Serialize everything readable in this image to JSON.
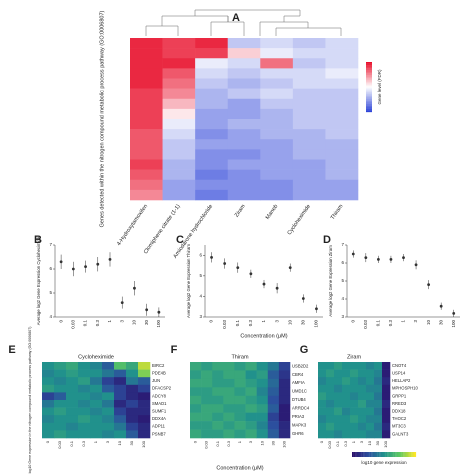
{
  "chart_data": [
    {
      "type": "heatmap",
      "panel": "A",
      "colormap": "blue-white-red",
      "clim": [
        -1,
        1
      ],
      "ylabel": "Genes detected within the nitrogen compound metabolic process pathway (GO:0006807)",
      "colorbar_label": "Gene level (FDR)",
      "categories": [
        "4-Hydroxytamoxifen",
        "Clomiphene citrate (1-1)",
        "Amiodarone hydrochloride",
        "Ziram",
        "Maneb",
        "Cycloheximide",
        "Thiram"
      ],
      "values": [
        [
          0.9,
          0.8,
          0.9,
          -0.3,
          -0.2,
          -0.3,
          -0.2
        ],
        [
          0.9,
          0.8,
          0.8,
          0.2,
          -0.1,
          -0.2,
          -0.2
        ],
        [
          0.9,
          0.9,
          -0.1,
          -0.2,
          0.6,
          -0.3,
          -0.2
        ],
        [
          0.9,
          0.7,
          -0.2,
          -0.3,
          -0.2,
          -0.2,
          -0.1
        ],
        [
          0.9,
          0.6,
          -0.3,
          -0.4,
          -0.3,
          -0.2,
          -0.2
        ],
        [
          0.8,
          0.5,
          -0.4,
          -0.3,
          -0.2,
          -0.3,
          -0.3
        ],
        [
          0.8,
          0.3,
          -0.4,
          -0.5,
          -0.3,
          -0.3,
          -0.3
        ],
        [
          0.8,
          0.1,
          -0.5,
          -0.5,
          -0.4,
          -0.3,
          -0.3
        ],
        [
          0.8,
          -0.1,
          -0.5,
          -0.4,
          -0.4,
          -0.3,
          -0.3
        ],
        [
          0.7,
          -0.2,
          -0.6,
          -0.5,
          -0.4,
          -0.4,
          -0.3
        ],
        [
          0.7,
          -0.3,
          -0.5,
          -0.5,
          -0.5,
          -0.4,
          -0.4
        ],
        [
          0.7,
          -0.3,
          -0.6,
          -0.6,
          -0.5,
          -0.4,
          -0.4
        ],
        [
          0.8,
          -0.4,
          -0.6,
          -0.5,
          -0.5,
          -0.5,
          -0.4
        ],
        [
          0.7,
          -0.4,
          -0.7,
          -0.6,
          -0.5,
          -0.5,
          -0.4
        ],
        [
          0.6,
          -0.5,
          -0.6,
          -0.6,
          -0.6,
          -0.5,
          -0.5
        ],
        [
          0.5,
          -0.5,
          -0.7,
          -0.6,
          -0.6,
          -0.5,
          -0.5
        ]
      ]
    },
    {
      "type": "scatter",
      "panel": "B",
      "ylabel": "Average log2 Gene Expression Cycloheximide",
      "categories": [
        "0",
        "0.03",
        "0.1",
        "0.3",
        "1",
        "3",
        "10",
        "30",
        "100"
      ],
      "values": [
        6.3,
        6.0,
        6.1,
        6.2,
        6.4,
        4.6,
        5.2,
        4.3,
        4.2
      ],
      "errors": [
        0.3,
        0.3,
        0.25,
        0.3,
        0.3,
        0.25,
        0.3,
        0.25,
        0.2
      ],
      "ylim": [
        4,
        7
      ],
      "yticks": [
        4,
        5,
        6,
        7
      ],
      "color": "#333333"
    },
    {
      "type": "scatter",
      "panel": "C",
      "ylabel": "Average log2 Gene Expression Thiram",
      "xlabel": "Concentration (μM)",
      "categories": [
        "0",
        "0.03",
        "0.1",
        "0.3",
        "1",
        "3",
        "10",
        "30",
        "100"
      ],
      "values": [
        5.9,
        5.6,
        5.4,
        5.1,
        4.6,
        4.4,
        5.4,
        3.9,
        3.4
      ],
      "errors": [
        0.25,
        0.25,
        0.25,
        0.2,
        0.2,
        0.25,
        0.2,
        0.2,
        0.2
      ],
      "ylim": [
        3,
        6.5
      ],
      "yticks": [
        3,
        4,
        5,
        6
      ],
      "color": "#333333"
    },
    {
      "type": "scatter",
      "panel": "D",
      "ylabel": "Average log2 Gene Expression Ziram",
      "categories": [
        "0",
        "0.03",
        "0.1",
        "0.3",
        "1",
        "3",
        "10",
        "30",
        "100"
      ],
      "values": [
        6.5,
        6.3,
        6.2,
        6.2,
        6.3,
        5.9,
        4.8,
        3.6,
        3.2
      ],
      "errors": [
        0.2,
        0.25,
        0.2,
        0.2,
        0.2,
        0.25,
        0.25,
        0.2,
        0.2
      ],
      "ylim": [
        3,
        7
      ],
      "yticks": [
        3,
        4,
        5,
        6,
        7
      ],
      "color": "#333333"
    },
    {
      "type": "heatmap",
      "panel": "E",
      "title": "Cycloheximide",
      "colormap": "viridis",
      "clim": [
        0,
        1
      ],
      "ylabel": "log10 Gene expression in the nitrogen compound metabolic process pathway (GO:0006807)",
      "categories": [
        "0",
        "0.03",
        "0.1",
        "0.3",
        "1",
        "3",
        "10",
        "30",
        "100"
      ],
      "rows": [
        "BIRC2",
        "PDE4B",
        "JUN",
        "DFACSP2",
        "ADCY8",
        "SMAD1",
        "SUMF1",
        "DDX4A",
        "ADP11",
        "PSNB7"
      ],
      "values": [
        [
          0.5,
          0.55,
          0.6,
          0.5,
          0.45,
          0.3,
          0.7,
          0.6,
          0.9
        ],
        [
          0.45,
          0.5,
          0.55,
          0.5,
          0.5,
          0.4,
          0.3,
          0.5,
          0.8
        ],
        [
          0.5,
          0.45,
          0.5,
          0.55,
          0.4,
          0.2,
          0.1,
          0.4,
          0.3
        ],
        [
          0.55,
          0.5,
          0.5,
          0.45,
          0.5,
          0.3,
          0.2,
          0.1,
          0.2
        ],
        [
          0.2,
          0.3,
          0.5,
          0.5,
          0.45,
          0.5,
          0.2,
          0.1,
          0.05
        ],
        [
          0.4,
          0.5,
          0.5,
          0.45,
          0.5,
          0.4,
          0.1,
          0.2,
          0.1
        ],
        [
          0.5,
          0.55,
          0.5,
          0.5,
          0.45,
          0.5,
          0.2,
          0.1,
          0.1
        ],
        [
          0.45,
          0.5,
          0.5,
          0.55,
          0.5,
          0.45,
          0.3,
          0.1,
          0.05
        ],
        [
          0.5,
          0.5,
          0.45,
          0.5,
          0.5,
          0.5,
          0.4,
          0.2,
          0.1
        ],
        [
          0.5,
          0.55,
          0.5,
          0.5,
          0.5,
          0.45,
          0.5,
          0.3,
          0.1
        ]
      ]
    },
    {
      "type": "heatmap",
      "panel": "F",
      "title": "Thiram",
      "colormap": "viridis",
      "clim": [
        0,
        1
      ],
      "xlabel": "Concentration (μM)",
      "categories": [
        "0",
        "0.03",
        "0.1",
        "0.3",
        "1",
        "3",
        "10",
        "30",
        "100"
      ],
      "rows": [
        "USB2D2",
        "CBR4",
        "AMFIA",
        "UMD1C",
        "DTUB4",
        "ARRDC4",
        "PRIA3",
        "MAPK3",
        "GHR6"
      ],
      "values": [
        [
          0.6,
          0.55,
          0.6,
          0.6,
          0.55,
          0.6,
          0.5,
          0.4,
          0.2
        ],
        [
          0.55,
          0.6,
          0.55,
          0.6,
          0.6,
          0.5,
          0.55,
          0.3,
          0.15
        ],
        [
          0.6,
          0.6,
          0.55,
          0.55,
          0.6,
          0.55,
          0.5,
          0.35,
          0.1
        ],
        [
          0.55,
          0.55,
          0.6,
          0.6,
          0.55,
          0.6,
          0.45,
          0.3,
          0.1
        ],
        [
          0.6,
          0.55,
          0.55,
          0.6,
          0.6,
          0.55,
          0.5,
          0.25,
          0.1
        ],
        [
          0.55,
          0.6,
          0.6,
          0.55,
          0.55,
          0.6,
          0.55,
          0.3,
          0.05
        ],
        [
          0.6,
          0.6,
          0.55,
          0.6,
          0.55,
          0.5,
          0.5,
          0.2,
          0.05
        ],
        [
          0.55,
          0.55,
          0.6,
          0.55,
          0.6,
          0.55,
          0.45,
          0.25,
          0.1
        ],
        [
          0.6,
          0.55,
          0.55,
          0.6,
          0.55,
          0.6,
          0.5,
          0.3,
          0.1
        ]
      ]
    },
    {
      "type": "heatmap",
      "panel": "G",
      "title": "Ziram",
      "colormap": "viridis",
      "clim": [
        0,
        1
      ],
      "colorbar_label": "log10 gene expression",
      "categories": [
        "0",
        "0.03",
        "0.1",
        "0.3",
        "1",
        "3",
        "10",
        "30",
        "100"
      ],
      "rows": [
        "CNOT4",
        "USP14",
        "HELLAP2",
        "MPHOSPH10",
        "GRPP1",
        "RRED3",
        "DDX18",
        "THOC2",
        "MT3C3",
        "GALNT3"
      ],
      "values": [
        [
          0.5,
          0.5,
          0.55,
          0.5,
          0.5,
          0.5,
          0.45,
          0.5,
          0.05
        ],
        [
          0.5,
          0.55,
          0.5,
          0.5,
          0.55,
          0.5,
          0.5,
          0.45,
          0.05
        ],
        [
          0.45,
          0.5,
          0.5,
          0.55,
          0.5,
          0.45,
          0.5,
          0.4,
          0.1
        ],
        [
          0.5,
          0.5,
          0.45,
          0.5,
          0.5,
          0.5,
          0.45,
          0.45,
          0.05
        ],
        [
          0.55,
          0.5,
          0.5,
          0.5,
          0.45,
          0.5,
          0.5,
          0.4,
          0.05
        ],
        [
          0.5,
          0.45,
          0.5,
          0.5,
          0.5,
          0.55,
          0.45,
          0.45,
          0.1
        ],
        [
          0.5,
          0.5,
          0.55,
          0.45,
          0.5,
          0.5,
          0.5,
          0.4,
          0.05
        ],
        [
          0.45,
          0.5,
          0.5,
          0.5,
          0.55,
          0.5,
          0.45,
          0.45,
          0.05
        ],
        [
          0.5,
          0.55,
          0.5,
          0.5,
          0.5,
          0.45,
          0.5,
          0.4,
          0.1
        ],
        [
          0.5,
          0.5,
          0.45,
          0.5,
          0.5,
          0.5,
          0.45,
          0.45,
          0.05
        ]
      ]
    }
  ]
}
